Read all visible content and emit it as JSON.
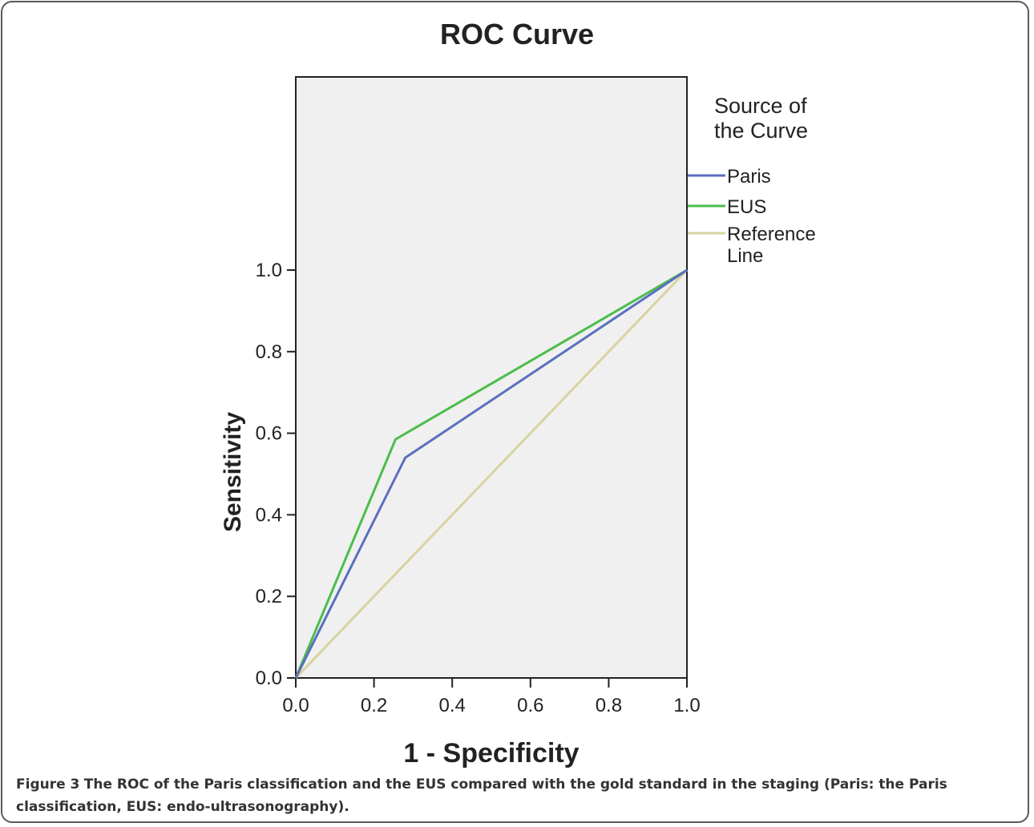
{
  "chart_data": {
    "type": "line",
    "title": "ROC Curve",
    "xlabel": "1 - Specificity",
    "ylabel": "Sensitivity",
    "xlim": [
      0,
      1
    ],
    "ylim": [
      0,
      1
    ],
    "x_ticks": [
      "0.0",
      "0.2",
      "0.4",
      "0.6",
      "0.8",
      "1.0"
    ],
    "y_ticks": [
      "0.0",
      "0.2",
      "0.4",
      "0.6",
      "0.8",
      "1.0"
    ],
    "grid": false,
    "legend_title": "Source of the Curve",
    "legend_position": "right",
    "series": [
      {
        "name": "Paris",
        "color": "#5b6fc0",
        "points": [
          [
            0,
            0
          ],
          [
            0.28,
            0.54
          ],
          [
            1,
            1
          ]
        ]
      },
      {
        "name": "EUS",
        "color": "#4cbd4a",
        "points": [
          [
            0,
            0
          ],
          [
            0.255,
            0.585
          ],
          [
            1,
            1
          ]
        ]
      },
      {
        "name": "Reference Line",
        "color": "#d8d3a0",
        "points": [
          [
            0,
            0
          ],
          [
            1,
            1
          ]
        ]
      }
    ]
  },
  "caption": {
    "label": "Figure 3",
    "text": "The ROC of the Paris classification and the EUS compared with the gold standard in the staging (Paris: the Paris classification, EUS: endo-ultrasonography)."
  }
}
